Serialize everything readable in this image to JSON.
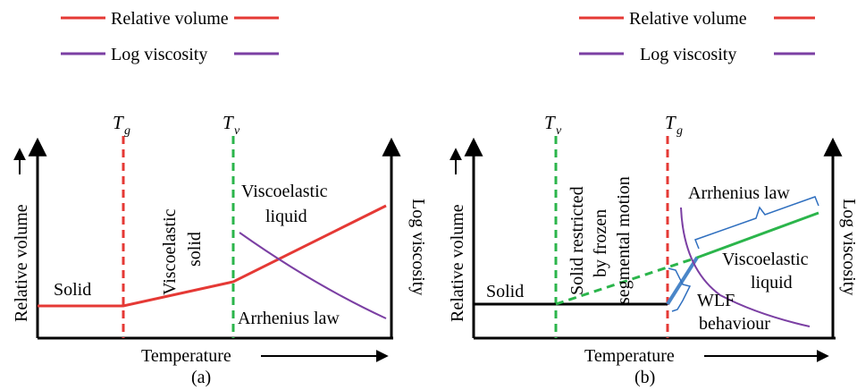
{
  "colors": {
    "relative_volume": "#e53935",
    "log_viscosity": "#7b3fa3",
    "dashed_extension": "#2bb54b",
    "wlf_segment": "#4a86c8",
    "brace": "#2f6fbf",
    "solid_line_b": "#000000"
  },
  "legend": {
    "relative_volume": "Relative volume",
    "log_viscosity": "Log viscosity"
  },
  "panel_a": {
    "caption": "(a)",
    "x_axis_label": "Temperature",
    "y_left_label": "Relative volume",
    "y_right_label": "Log viscosity",
    "tg_symbol": "T",
    "tg_sub": "g",
    "tv_symbol": "T",
    "tv_sub": "v",
    "region_solid": "Solid",
    "region_viscoelastic_solid_1": "Viscoelastic",
    "region_viscoelastic_solid_2": "solid",
    "region_viscoelastic_liquid_1": "Viscoelastic",
    "region_viscoelastic_liquid_2": "liquid",
    "arrhenius_label": "Arrhenius law"
  },
  "panel_b": {
    "caption": "(b)",
    "x_axis_label": "Temperature",
    "y_left_label": "Relative volume",
    "y_right_label": "Log viscosity",
    "tv_symbol": "T",
    "tv_sub": "v",
    "tg_symbol": "T",
    "tg_sub": "g",
    "region_solid": "Solid",
    "restricted_1": "Solid restricted",
    "restricted_2": "by frozen",
    "restricted_3": "segmental motion",
    "arrhenius_label": "Arrhenius law",
    "region_viscoelastic_liquid_1": "Viscoelastic",
    "region_viscoelastic_liquid_2": "liquid",
    "wlf_1": "WLF",
    "wlf_2": "behaviour"
  }
}
